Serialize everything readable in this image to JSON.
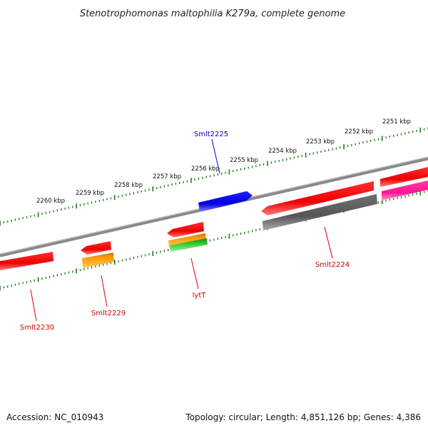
{
  "title": "Stenotrophomonas maltophilia K279a, complete genome",
  "footer": {
    "accession": "Accession: NC_010943",
    "summary": "Topology: circular; Length: 4,851,126 bp; Genes: 4,386"
  },
  "ticks": [
    "2251 kbp",
    "2252 kbp",
    "2253 kbp",
    "2254 kbp",
    "2255 kbp",
    "2256 kbp",
    "2257 kbp",
    "2258 kbp",
    "2259 kbp",
    "2260 kbp"
  ],
  "genes": [
    {
      "label": "Smlt2225",
      "color": "#0000ee",
      "strand": "forward"
    },
    {
      "label": "Smlt2224",
      "color": "#dd0000",
      "strand": "reverse"
    },
    {
      "label": "lytT",
      "color": "#dd0000",
      "strand": "reverse"
    },
    {
      "label": "Smlt2229",
      "color": "#dd0000",
      "strand": "reverse"
    },
    {
      "label": "Smlt2230",
      "color": "#dd0000",
      "strand": "reverse"
    }
  ],
  "colors": {
    "backbone": "#888888",
    "tick": "#1a7a1a",
    "cds": "#ff0000",
    "gene_blue": "#0000ee",
    "orange": "#ff9900",
    "green": "#33cc33",
    "gray": "#555555",
    "pink": "#ff1493"
  }
}
